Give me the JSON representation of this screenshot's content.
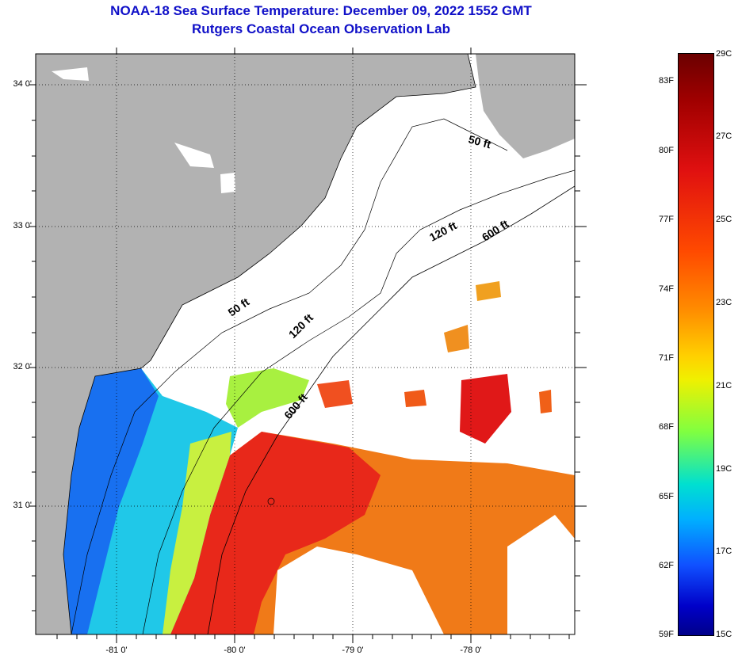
{
  "title": {
    "line1": "NOAA-18 Sea Surface Temperature:  December 09, 2022 1552 GMT",
    "line2": "Rutgers Coastal Ocean Observation Lab"
  },
  "map": {
    "lat_labels": [
      "34 0'",
      "33 0'",
      "32 0'",
      "31 0'"
    ],
    "lon_labels": [
      "-81 0'",
      "-80 0'",
      "-79 0'",
      "-78 0'"
    ],
    "contour_labels": [
      "50 ft",
      "120 ft",
      "600 ft",
      "50 ft",
      "120 ft",
      "600 ft"
    ],
    "colors": {
      "land": "#b2b2b2",
      "no_data": "#ffffff",
      "grid": "#000000"
    }
  },
  "colorbar": {
    "fahrenheit": [
      "83F",
      "80F",
      "77F",
      "74F",
      "71F",
      "68F",
      "65F",
      "62F",
      "59F"
    ],
    "celsius": [
      "29C",
      "27C",
      "25C",
      "23C",
      "21C",
      "19C",
      "17C",
      "15C"
    ]
  }
}
